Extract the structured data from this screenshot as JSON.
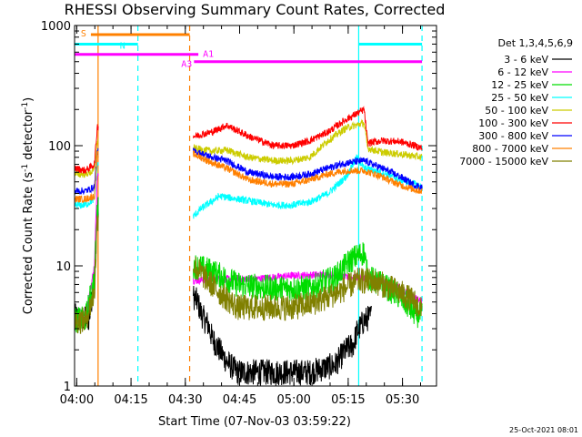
{
  "chart_data": {
    "type": "line",
    "title": "RHESSI Observing Summary Count Rates, Corrected",
    "xlabel": "Start Time (07-Nov-03 03:59:22)",
    "ylabel_main": "Corrected Count Rate (s",
    "ylabel_sup1": "-1",
    "ylabel_mid": " detector",
    "ylabel_sup2": "-1",
    "ylabel_end": ")",
    "y_scale": "log",
    "ylim": [
      1,
      1000
    ],
    "xlim_minutes": [
      0,
      100
    ],
    "x_ticks": [
      {
        "m": 0.6,
        "label": "04:00"
      },
      {
        "m": 15.6,
        "label": "04:15"
      },
      {
        "m": 30.6,
        "label": "04:30"
      },
      {
        "m": 45.6,
        "label": "04:45"
      },
      {
        "m": 60.6,
        "label": "05:00"
      },
      {
        "m": 75.6,
        "label": "05:15"
      },
      {
        "m": 90.6,
        "label": "05:30"
      }
    ],
    "y_ticks": [
      {
        "v": 1,
        "label": "1"
      },
      {
        "v": 10,
        "label": "10"
      },
      {
        "v": 100,
        "label": "100"
      },
      {
        "v": 1000,
        "label": "1000"
      }
    ],
    "grid": false,
    "legend_position": "right",
    "legend_title": "Det 1,3,4,5,6,9",
    "series": [
      {
        "name": "3 - 6 keV",
        "color": "#000000"
      },
      {
        "name": "6 - 12 keV",
        "color": "#ff00ff"
      },
      {
        "name": "12 - 25 keV",
        "color": "#00dd00"
      },
      {
        "name": "25 - 50 keV",
        "color": "#00ffff"
      },
      {
        "name": "50 - 100 keV",
        "color": "#cccc00"
      },
      {
        "name": "100 - 300 keV",
        "color": "#ff0000"
      },
      {
        "name": "300 - 800 keV",
        "color": "#0000ff"
      },
      {
        "name": "800 - 7000 keV",
        "color": "#ff8000"
      },
      {
        "name": "7000 - 15000 keV",
        "color": "#808000"
      }
    ],
    "flag_bars": [
      {
        "label": "S",
        "color": "#ff8000",
        "x": [
          4.5,
          31.8
        ],
        "y": 840
      },
      {
        "label": "N",
        "color": "#00ffff",
        "x": [
          0,
          17.5
        ],
        "y": 700
      },
      {
        "label": "N",
        "color": "#00ffff",
        "x": [
          78.5,
          96
        ],
        "y": 700
      },
      {
        "label": "A1",
        "color": "#ff00ff",
        "x": [
          0,
          34.2
        ],
        "y": 575
      },
      {
        "label": "A3",
        "color": "#ff00ff",
        "x": [
          33,
          96
        ],
        "y": 500
      }
    ],
    "vlines": [
      {
        "m": 6.5,
        "color": "#ff8000",
        "style": "solid"
      },
      {
        "m": 17.5,
        "color": "#00ffff",
        "style": "dash"
      },
      {
        "m": 31.8,
        "color": "#ff8000",
        "style": "dash"
      },
      {
        "m": 78.5,
        "color": "#00ffff",
        "style": "solid"
      },
      {
        "m": 96,
        "color": "#00ffff",
        "style": "dash"
      }
    ],
    "data": {
      "3 - 6 keV": [
        [
          0,
          3.8
        ],
        [
          2,
          3.6
        ],
        [
          4,
          3.6
        ],
        [
          5.5,
          8
        ],
        [
          6.3,
          30
        ],
        [
          33,
          5.5
        ],
        [
          34,
          5
        ],
        [
          35,
          4
        ],
        [
          36,
          3.5
        ],
        [
          37,
          3.2
        ],
        [
          38,
          2.5
        ],
        [
          40,
          2
        ],
        [
          42,
          1.6
        ],
        [
          45,
          1.3
        ],
        [
          55,
          1.3
        ],
        [
          65,
          1.3
        ],
        [
          72,
          1.5
        ],
        [
          75,
          2
        ],
        [
          77,
          2.2
        ],
        [
          78,
          2.8
        ],
        [
          80,
          3.5
        ],
        [
          82,
          3.8
        ]
      ],
      "6 - 12 keV": [
        [
          0,
          3.5
        ],
        [
          3,
          3.7
        ],
        [
          5.5,
          10
        ],
        [
          6.3,
          60
        ],
        [
          33,
          7.5
        ],
        [
          40,
          7.8
        ],
        [
          50,
          7.8
        ],
        [
          60,
          8.3
        ],
        [
          70,
          8.5
        ],
        [
          75,
          8
        ],
        [
          80,
          8
        ],
        [
          85,
          7.5
        ],
        [
          90,
          6.5
        ],
        [
          94,
          5.5
        ],
        [
          96,
          5
        ]
      ],
      "12 - 25 keV": [
        [
          0,
          3.5
        ],
        [
          3,
          3.6
        ],
        [
          5.5,
          8
        ],
        [
          6.3,
          30
        ],
        [
          33,
          10
        ],
        [
          38,
          9
        ],
        [
          45,
          7
        ],
        [
          55,
          6.5
        ],
        [
          65,
          6.5
        ],
        [
          72,
          8
        ],
        [
          76,
          11
        ],
        [
          80,
          13
        ],
        [
          81,
          8
        ],
        [
          85,
          7
        ],
        [
          90,
          5.5
        ],
        [
          94,
          4
        ],
        [
          96,
          3.8
        ]
      ],
      "25 - 50 keV": [
        [
          0,
          32
        ],
        [
          3,
          32
        ],
        [
          5.5,
          36
        ],
        [
          6.3,
          70
        ],
        [
          33,
          26
        ],
        [
          35,
          30
        ],
        [
          40,
          38
        ],
        [
          45,
          36
        ],
        [
          50,
          34
        ],
        [
          55,
          32
        ],
        [
          60,
          32
        ],
        [
          65,
          34
        ],
        [
          70,
          40
        ],
        [
          75,
          55
        ],
        [
          78,
          80
        ],
        [
          80,
          65
        ],
        [
          85,
          60
        ],
        [
          90,
          52
        ],
        [
          94,
          48
        ],
        [
          96,
          45
        ]
      ],
      "50 - 100 keV": [
        [
          0,
          58
        ],
        [
          3,
          58
        ],
        [
          5.5,
          62
        ],
        [
          6.3,
          110
        ],
        [
          33,
          95
        ],
        [
          38,
          90
        ],
        [
          42,
          92
        ],
        [
          48,
          80
        ],
        [
          55,
          75
        ],
        [
          60,
          75
        ],
        [
          65,
          80
        ],
        [
          70,
          110
        ],
        [
          75,
          140
        ],
        [
          80,
          155
        ],
        [
          81,
          95
        ],
        [
          85,
          88
        ],
        [
          90,
          85
        ],
        [
          94,
          82
        ],
        [
          96,
          80
        ]
      ],
      "100 - 300 keV": [
        [
          0,
          65
        ],
        [
          3,
          62
        ],
        [
          5.5,
          70
        ],
        [
          6.3,
          145
        ],
        [
          33,
          120
        ],
        [
          38,
          130
        ],
        [
          42,
          148
        ],
        [
          48,
          120
        ],
        [
          55,
          100
        ],
        [
          60,
          100
        ],
        [
          65,
          110
        ],
        [
          70,
          130
        ],
        [
          75,
          165
        ],
        [
          80,
          200
        ],
        [
          81,
          105
        ],
        [
          85,
          110
        ],
        [
          90,
          108
        ],
        [
          94,
          100
        ],
        [
          96,
          95
        ]
      ],
      "300 - 800 keV": [
        [
          0,
          42
        ],
        [
          3,
          42
        ],
        [
          5.5,
          45
        ],
        [
          6.3,
          90
        ],
        [
          33,
          90
        ],
        [
          38,
          80
        ],
        [
          42,
          75
        ],
        [
          48,
          60
        ],
        [
          55,
          55
        ],
        [
          60,
          55
        ],
        [
          65,
          58
        ],
        [
          70,
          65
        ],
        [
          75,
          72
        ],
        [
          80,
          75
        ],
        [
          85,
          65
        ],
        [
          90,
          55
        ],
        [
          94,
          47
        ],
        [
          96,
          45
        ]
      ],
      "800 - 7000 keV": [
        [
          0,
          36
        ],
        [
          3,
          36
        ],
        [
          5.5,
          38
        ],
        [
          6.3,
          85
        ],
        [
          33,
          85
        ],
        [
          38,
          72
        ],
        [
          42,
          65
        ],
        [
          48,
          52
        ],
        [
          55,
          48
        ],
        [
          60,
          48
        ],
        [
          65,
          52
        ],
        [
          70,
          58
        ],
        [
          75,
          62
        ],
        [
          80,
          62
        ],
        [
          85,
          55
        ],
        [
          90,
          47
        ],
        [
          94,
          43
        ],
        [
          96,
          42
        ]
      ],
      "7000 - 15000 keV": [
        [
          0,
          3.5
        ],
        [
          3,
          3.5
        ],
        [
          5.5,
          6
        ],
        [
          6.3,
          25
        ],
        [
          33,
          10
        ],
        [
          36,
          8
        ],
        [
          40,
          6
        ],
        [
          45,
          4.5
        ],
        [
          50,
          4.5
        ],
        [
          55,
          4.5
        ],
        [
          60,
          4.5
        ],
        [
          65,
          4.8
        ],
        [
          70,
          5.5
        ],
        [
          75,
          6.5
        ],
        [
          78,
          7.5
        ],
        [
          82,
          7.5
        ],
        [
          85,
          7
        ],
        [
          90,
          6
        ],
        [
          94,
          5
        ],
        [
          96,
          4.2
        ]
      ]
    }
  },
  "footer_timestamp": "25-Oct-2021 08:01"
}
